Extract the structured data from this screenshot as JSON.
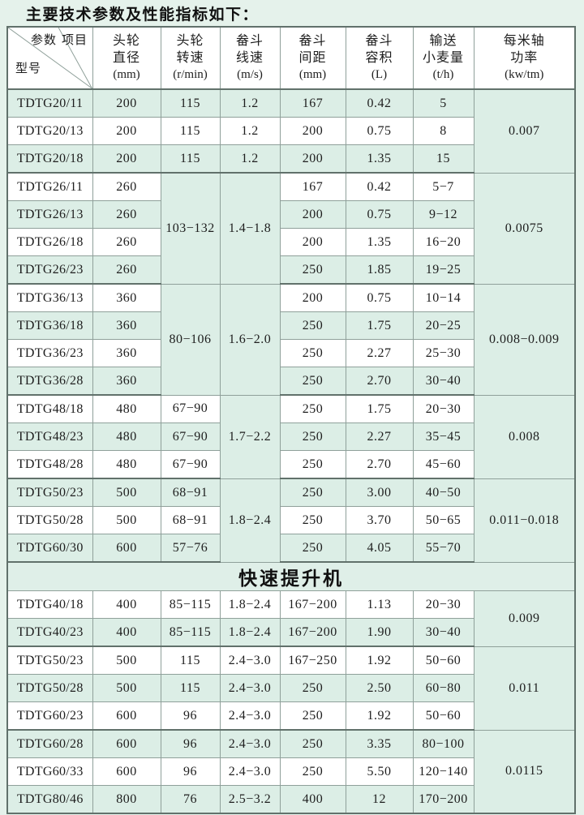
{
  "title": "主要技术参数及性能指标如下：",
  "colors": {
    "page_bg": "#e5f2eb",
    "row_green": "#dceee6",
    "row_white": "#ffffff",
    "grid_line": "#8fa09a",
    "outer_border": "#61716b"
  },
  "table": {
    "corner": {
      "param": "参数",
      "item": "项目",
      "model": "型号"
    },
    "columns": [
      {
        "lines": [
          "头轮",
          "直径",
          "(mm)"
        ]
      },
      {
        "lines": [
          "头轮",
          "转速",
          "(r/min)"
        ]
      },
      {
        "lines": [
          "畚斗",
          "线速",
          "(m/s)"
        ]
      },
      {
        "lines": [
          "畚斗",
          "间距",
          "(mm)"
        ]
      },
      {
        "lines": [
          "畚斗",
          "容积",
          "(L)"
        ]
      },
      {
        "lines": [
          "输送",
          "小麦量",
          "(t/h)"
        ]
      },
      {
        "lines": [
          "每米轴",
          "功率",
          "(kw/tm)"
        ]
      }
    ],
    "section2_title": "快速提升机",
    "sections": [
      {
        "rows": [
          {
            "model": "TDTG20/11",
            "cells": [
              [
                "200"
              ],
              [
                "115"
              ],
              [
                "1.2"
              ],
              [
                "167"
              ],
              [
                "0.42"
              ],
              [
                "5"
              ],
              [
                "0.007",
                3
              ]
            ]
          },
          {
            "model": "TDTG20/13",
            "cells": [
              [
                "200"
              ],
              [
                "115"
              ],
              [
                "1.2"
              ],
              [
                "200"
              ],
              [
                "0.75"
              ],
              [
                "8"
              ]
            ]
          },
          {
            "model": "TDTG20/18",
            "cells": [
              [
                "200"
              ],
              [
                "115"
              ],
              [
                "1.2"
              ],
              [
                "200"
              ],
              [
                "1.35"
              ],
              [
                "15"
              ]
            ]
          },
          {
            "model": "TDTG26/11",
            "cells": [
              [
                "260"
              ],
              [
                "103−132",
                4
              ],
              [
                "1.4−1.8",
                4
              ],
              [
                "167"
              ],
              [
                "0.42"
              ],
              [
                "5−7"
              ],
              [
                "0.0075",
                4
              ]
            ]
          },
          {
            "model": "TDTG26/13",
            "cells": [
              [
                "260"
              ],
              [
                "200"
              ],
              [
                "0.75"
              ],
              [
                "9−12"
              ]
            ]
          },
          {
            "model": "TDTG26/18",
            "cells": [
              [
                "260"
              ],
              [
                "200"
              ],
              [
                "1.35"
              ],
              [
                "16−20"
              ]
            ]
          },
          {
            "model": "TDTG26/23",
            "cells": [
              [
                "260"
              ],
              [
                "250"
              ],
              [
                "1.85"
              ],
              [
                "19−25"
              ]
            ]
          },
          {
            "model": "TDTG36/13",
            "cells": [
              [
                "360"
              ],
              [
                "80−106",
                4
              ],
              [
                "1.6−2.0",
                4
              ],
              [
                "200"
              ],
              [
                "0.75"
              ],
              [
                "10−14"
              ],
              [
                "0.008−0.009",
                4
              ]
            ]
          },
          {
            "model": "TDTG36/18",
            "cells": [
              [
                "360"
              ],
              [
                "250"
              ],
              [
                "1.75"
              ],
              [
                "20−25"
              ]
            ]
          },
          {
            "model": "TDTG36/23",
            "cells": [
              [
                "360"
              ],
              [
                "250"
              ],
              [
                "2.27"
              ],
              [
                "25−30"
              ]
            ]
          },
          {
            "model": "TDTG36/28",
            "cells": [
              [
                "360"
              ],
              [
                "250"
              ],
              [
                "2.70"
              ],
              [
                "30−40"
              ]
            ]
          },
          {
            "model": "TDTG48/18",
            "cells": [
              [
                "480"
              ],
              [
                "67−90"
              ],
              [
                "1.7−2.2",
                3
              ],
              [
                "250"
              ],
              [
                "1.75"
              ],
              [
                "20−30"
              ],
              [
                "0.008",
                3
              ]
            ]
          },
          {
            "model": "TDTG48/23",
            "cells": [
              [
                "480"
              ],
              [
                "67−90"
              ],
              [
                "250"
              ],
              [
                "2.27"
              ],
              [
                "35−45"
              ]
            ]
          },
          {
            "model": "TDTG48/28",
            "cells": [
              [
                "480"
              ],
              [
                "67−90"
              ],
              [
                "250"
              ],
              [
                "2.70"
              ],
              [
                "45−60"
              ]
            ]
          },
          {
            "model": "TDTG50/23",
            "cells": [
              [
                "500"
              ],
              [
                "68−91"
              ],
              [
                "1.8−2.4",
                3
              ],
              [
                "250"
              ],
              [
                "3.00"
              ],
              [
                "40−50"
              ],
              [
                "0.011−0.018",
                3
              ]
            ]
          },
          {
            "model": "TDTG50/28",
            "cells": [
              [
                "500"
              ],
              [
                "68−91"
              ],
              [
                "250"
              ],
              [
                "3.70"
              ],
              [
                "50−65"
              ]
            ]
          },
          {
            "model": "TDTG60/30",
            "cells": [
              [
                "600"
              ],
              [
                "57−76"
              ],
              [
                "250"
              ],
              [
                "4.05"
              ],
              [
                "55−70"
              ]
            ]
          }
        ]
      },
      {
        "rows": [
          {
            "model": "TDTG40/18",
            "cells": [
              [
                "400"
              ],
              [
                "85−115"
              ],
              [
                "1.8−2.4"
              ],
              [
                "167−200"
              ],
              [
                "1.13"
              ],
              [
                "20−30"
              ],
              [
                "0.009",
                2
              ]
            ]
          },
          {
            "model": "TDTG40/23",
            "cells": [
              [
                "400"
              ],
              [
                "85−115"
              ],
              [
                "1.8−2.4"
              ],
              [
                "167−200"
              ],
              [
                "1.90"
              ],
              [
                "30−40"
              ]
            ]
          },
          {
            "model": "TDTG50/23",
            "cells": [
              [
                "500"
              ],
              [
                "115"
              ],
              [
                "2.4−3.0"
              ],
              [
                "167−250"
              ],
              [
                "1.92"
              ],
              [
                "50−60"
              ],
              [
                "0.011",
                3
              ]
            ]
          },
          {
            "model": "TDTG50/28",
            "cells": [
              [
                "500"
              ],
              [
                "115"
              ],
              [
                "2.4−3.0"
              ],
              [
                "250"
              ],
              [
                "2.50"
              ],
              [
                "60−80"
              ]
            ]
          },
          {
            "model": "TDTG60/23",
            "cells": [
              [
                "600"
              ],
              [
                "96"
              ],
              [
                "2.4−3.0"
              ],
              [
                "250"
              ],
              [
                "1.92"
              ],
              [
                "50−60"
              ]
            ]
          },
          {
            "model": "TDTG60/28",
            "cells": [
              [
                "600"
              ],
              [
                "96"
              ],
              [
                "2.4−3.0"
              ],
              [
                "250"
              ],
              [
                "3.35"
              ],
              [
                "80−100"
              ],
              [
                "0.0115",
                3
              ]
            ]
          },
          {
            "model": "TDTG60/33",
            "cells": [
              [
                "600"
              ],
              [
                "96"
              ],
              [
                "2.4−3.0"
              ],
              [
                "250"
              ],
              [
                "5.50"
              ],
              [
                "120−140"
              ]
            ]
          },
          {
            "model": "TDTG80/46",
            "cells": [
              [
                "800"
              ],
              [
                "76"
              ],
              [
                "2.5−3.2"
              ],
              [
                "400"
              ],
              [
                "12"
              ],
              [
                "170−200"
              ]
            ]
          }
        ]
      }
    ]
  }
}
